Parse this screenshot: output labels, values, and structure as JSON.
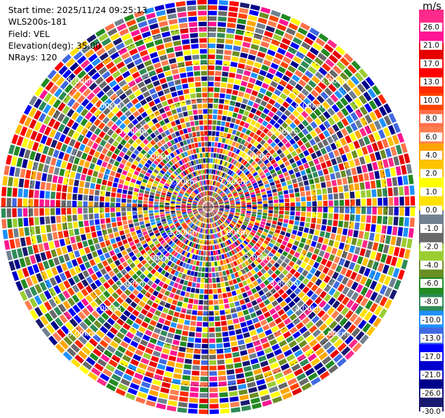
{
  "info": {
    "start_time": "Start time: 2025/11/24 09:25:13",
    "instrument": "WLS200s-181",
    "field": "Field: VEL",
    "elevation": "Elevation(deg): 35.00",
    "nrays": "NRays: 120"
  },
  "chart_data": {
    "type": "heatmap",
    "projection": "polar",
    "title": "",
    "nrays": 120,
    "range_rings_km": [
      1,
      2,
      3,
      4,
      5
    ],
    "ring_labels": [
      "1.00km",
      "2.00km",
      "3.00km",
      "4.00km",
      "5.00km"
    ],
    "max_range_km": 5.8,
    "gates": 38,
    "colorbar": {
      "unit": "m/s",
      "ticks": [
        "26.0",
        "21.0",
        "17.0",
        "13.0",
        "10.0",
        "8.0",
        "6.0",
        "4.0",
        "2.0",
        "1.0",
        "0.0",
        "-1.0",
        "-2.0",
        "-4.0",
        "-6.0",
        "-8.0",
        "-10.0",
        "-13.0",
        "-17.0",
        "-21.0",
        "-26.0",
        "-30.0"
      ],
      "colors": [
        "#ff2a8a",
        "#ff1493",
        "#e60000",
        "#ff0000",
        "#ff2a00",
        "#ff4500",
        "#ff6f4a",
        "#ff7f50",
        "#ffa500",
        "#ffc400",
        "#ffff00",
        "#ffe100",
        "#708090",
        "#696969",
        "#9acd32",
        "#6b8e23",
        "#228b22",
        "#2e8b57",
        "#1e90ff",
        "#4169e1",
        "#0000ff",
        "#0000cd",
        "#00008b",
        "#191970"
      ]
    }
  }
}
